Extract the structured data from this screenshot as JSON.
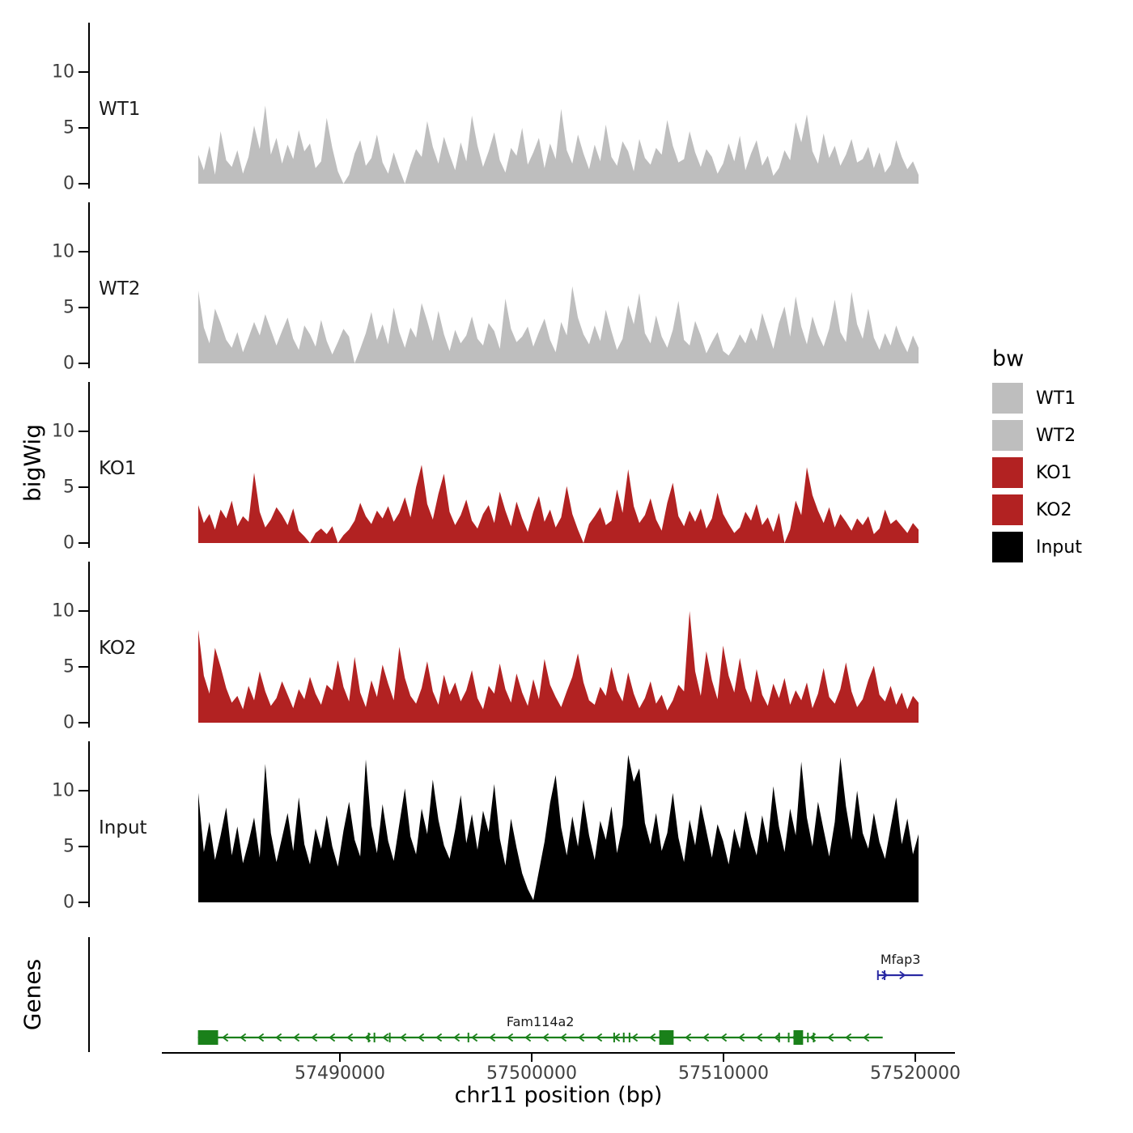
{
  "figure": {
    "y_axis_label": "bigWig",
    "genes_axis_label": "Genes",
    "x_axis_label": "chr11 position (bp)",
    "x_tick_labels": [
      "57490000",
      "57500000",
      "57510000",
      "57520000"
    ],
    "y_tick_labels": [
      "10",
      "5",
      "0"
    ]
  },
  "legend": {
    "title": "bw",
    "entries": [
      {
        "label": "WT1",
        "color": "#bebebe"
      },
      {
        "label": "WT2",
        "color": "#bebebe"
      },
      {
        "label": "KO1",
        "color": "#b22222"
      },
      {
        "label": "KO2",
        "color": "#b22222"
      },
      {
        "label": "Input",
        "color": "#000000"
      }
    ]
  },
  "chart_data": {
    "type": "area",
    "title": "",
    "xlabel": "chr11 position (bp)",
    "ylabel": "bigWig",
    "x_ticks_bp": [
      57490000,
      57500000,
      57510000,
      57520000
    ],
    "x_range_bp": [
      57482600,
      57520200
    ],
    "y_ticks": [
      0,
      5,
      10
    ],
    "tracks": [
      {
        "name": "WT1",
        "color": "#bebebe",
        "values": [
          2.6,
          1.2,
          3.4,
          0.8,
          4.7,
          2.1,
          1.5,
          3.0,
          0.9,
          2.4,
          5.2,
          3.1,
          7.0,
          2.6,
          4.1,
          1.8,
          3.5,
          2.2,
          4.8,
          2.9,
          3.6,
          1.4,
          2.0,
          5.9,
          3.2,
          1.1,
          0.0,
          0.8,
          2.7,
          3.9,
          1.6,
          2.3,
          4.4,
          1.9,
          0.9,
          2.8,
          1.3,
          0.0,
          1.7,
          3.1,
          2.4,
          5.6,
          3.3,
          1.8,
          4.2,
          2.6,
          1.2,
          3.7,
          2.0,
          6.1,
          3.4,
          1.5,
          2.9,
          4.6,
          2.1,
          1.0,
          3.2,
          2.5,
          5.0,
          1.7,
          2.8,
          4.1,
          1.4,
          3.6,
          2.2,
          6.7,
          3.0,
          1.8,
          4.4,
          2.7,
          1.3,
          3.5,
          2.0,
          5.3,
          2.4,
          1.6,
          3.8,
          2.9,
          1.1,
          4.0,
          2.3,
          1.7,
          3.2,
          2.6,
          5.7,
          3.4,
          1.9,
          2.2,
          4.7,
          2.8,
          1.5,
          3.1,
          2.4,
          0.9,
          1.8,
          3.6,
          2.0,
          4.3,
          1.2,
          2.7,
          3.9,
          1.6,
          2.5,
          0.7,
          1.4,
          3.0,
          2.1,
          5.5,
          3.7,
          6.2,
          2.9,
          1.8,
          4.5,
          2.3,
          3.4,
          1.6,
          2.6,
          4.0,
          1.9,
          2.2,
          3.3,
          1.4,
          2.8,
          1.0,
          1.7,
          3.9,
          2.4,
          1.3,
          2.0,
          0.8
        ]
      },
      {
        "name": "WT2",
        "color": "#bebebe",
        "values": [
          6.5,
          3.2,
          1.8,
          4.9,
          3.6,
          2.1,
          1.4,
          2.8,
          1.0,
          2.3,
          3.7,
          2.5,
          4.4,
          3.0,
          1.6,
          2.9,
          4.1,
          2.2,
          1.2,
          3.4,
          2.6,
          1.5,
          3.9,
          2.0,
          0.8,
          1.9,
          3.1,
          2.4,
          0.0,
          1.3,
          2.7,
          4.6,
          2.1,
          3.5,
          1.7,
          5.0,
          2.8,
          1.4,
          3.2,
          2.3,
          5.4,
          3.8,
          2.0,
          4.7,
          2.6,
          1.1,
          3.0,
          1.8,
          2.5,
          4.2,
          2.2,
          1.6,
          3.6,
          2.9,
          1.3,
          5.8,
          3.1,
          1.9,
          2.4,
          3.3,
          1.5,
          2.8,
          4.0,
          2.1,
          1.0,
          3.7,
          2.5,
          6.9,
          4.1,
          2.6,
          1.7,
          3.4,
          2.0,
          4.8,
          2.9,
          1.2,
          2.2,
          5.2,
          3.5,
          6.3,
          2.7,
          1.8,
          4.3,
          2.4,
          1.4,
          3.0,
          5.6,
          2.1,
          1.6,
          3.8,
          2.5,
          0.9,
          1.9,
          2.8,
          1.1,
          0.7,
          1.5,
          2.6,
          1.8,
          3.2,
          2.0,
          4.5,
          2.9,
          1.3,
          3.6,
          5.1,
          2.4,
          6.0,
          3.3,
          1.7,
          4.2,
          2.6,
          1.5,
          3.1,
          5.7,
          2.8,
          1.9,
          6.4,
          3.5,
          2.2,
          4.9,
          2.3,
          1.2,
          2.7,
          1.6,
          3.4,
          2.0,
          1.0,
          2.5,
          1.4
        ]
      },
      {
        "name": "KO1",
        "color": "#b22222",
        "values": [
          3.4,
          1.8,
          2.6,
          1.2,
          3.0,
          2.2,
          3.8,
          1.5,
          2.4,
          1.9,
          6.3,
          2.8,
          1.4,
          2.1,
          3.2,
          2.5,
          1.6,
          3.1,
          1.1,
          0.6,
          0.0,
          0.9,
          1.3,
          0.8,
          1.5,
          0.0,
          0.7,
          1.2,
          2.0,
          3.6,
          2.4,
          1.7,
          2.9,
          2.2,
          3.3,
          1.9,
          2.7,
          4.1,
          2.3,
          5.0,
          7.0,
          3.5,
          2.1,
          4.4,
          6.2,
          2.8,
          1.6,
          2.5,
          3.9,
          2.0,
          1.3,
          2.6,
          3.4,
          1.8,
          4.6,
          2.9,
          1.5,
          3.7,
          2.2,
          1.0,
          2.8,
          4.2,
          1.9,
          3.0,
          1.4,
          2.3,
          5.1,
          2.6,
          1.2,
          0.0,
          1.7,
          2.4,
          3.2,
          1.6,
          2.0,
          4.8,
          2.7,
          6.6,
          3.3,
          1.8,
          2.5,
          4.0,
          2.1,
          1.1,
          3.6,
          5.4,
          2.4,
          1.5,
          2.9,
          1.9,
          3.1,
          1.3,
          2.2,
          4.5,
          2.6,
          1.7,
          0.9,
          1.4,
          2.8,
          2.0,
          3.5,
          1.6,
          2.3,
          1.0,
          2.7,
          0.0,
          1.2,
          3.8,
          2.5,
          6.8,
          4.3,
          2.9,
          1.8,
          3.2,
          1.4,
          2.6,
          1.9,
          1.1,
          2.2,
          1.6,
          2.4,
          0.8,
          1.3,
          3.0,
          1.7,
          2.1,
          1.5,
          0.9,
          1.8,
          1.2
        ]
      },
      {
        "name": "KO2",
        "color": "#b22222",
        "values": [
          8.3,
          4.2,
          2.6,
          6.7,
          5.0,
          3.1,
          1.8,
          2.4,
          1.2,
          3.3,
          2.0,
          4.6,
          2.8,
          1.5,
          2.2,
          3.7,
          2.5,
          1.3,
          3.0,
          2.1,
          4.1,
          2.6,
          1.6,
          3.4,
          2.9,
          5.6,
          3.2,
          1.9,
          5.9,
          2.7,
          1.4,
          3.8,
          2.3,
          5.2,
          3.5,
          2.0,
          6.8,
          4.0,
          2.4,
          1.7,
          3.1,
          5.5,
          2.8,
          1.6,
          4.3,
          2.5,
          3.6,
          1.9,
          2.9,
          4.7,
          2.2,
          1.2,
          3.3,
          2.6,
          5.3,
          3.0,
          1.8,
          4.4,
          2.7,
          1.5,
          3.9,
          2.1,
          5.7,
          3.4,
          2.3,
          1.4,
          2.8,
          4.1,
          6.2,
          3.6,
          2.0,
          1.6,
          3.2,
          2.4,
          5.0,
          2.9,
          1.9,
          4.5,
          2.6,
          1.3,
          2.2,
          3.7,
          1.7,
          2.5,
          1.1,
          2.0,
          3.4,
          2.8,
          10.0,
          4.6,
          2.4,
          6.4,
          3.8,
          2.1,
          6.9,
          4.2,
          2.7,
          5.8,
          3.1,
          1.8,
          4.8,
          2.5,
          1.5,
          3.5,
          2.2,
          4.0,
          1.6,
          2.9,
          2.0,
          3.6,
          1.3,
          2.6,
          4.9,
          2.3,
          1.7,
          3.0,
          5.4,
          2.8,
          1.4,
          2.1,
          3.8,
          5.1,
          2.5,
          1.9,
          3.3,
          1.6,
          2.7,
          1.2,
          2.4,
          1.8
        ]
      },
      {
        "name": "Input",
        "color": "#000000",
        "values": [
          9.8,
          4.5,
          7.2,
          3.8,
          6.0,
          8.5,
          4.2,
          6.8,
          3.5,
          5.4,
          7.6,
          4.0,
          12.4,
          6.2,
          3.6,
          5.8,
          8.0,
          4.6,
          9.4,
          5.2,
          3.4,
          6.6,
          4.8,
          7.8,
          5.0,
          3.2,
          6.4,
          9.0,
          5.6,
          4.1,
          12.8,
          6.9,
          4.4,
          8.8,
          5.5,
          3.7,
          7.0,
          10.2,
          5.9,
          4.3,
          8.4,
          6.1,
          11.0,
          7.4,
          5.1,
          3.9,
          6.5,
          9.6,
          5.3,
          7.9,
          4.7,
          8.2,
          6.3,
          10.6,
          5.7,
          3.3,
          7.5,
          4.9,
          2.6,
          1.2,
          0.2,
          2.8,
          5.4,
          8.9,
          11.4,
          6.7,
          4.2,
          7.7,
          5.0,
          9.2,
          6.0,
          3.8,
          7.3,
          5.6,
          8.6,
          4.4,
          6.9,
          13.2,
          10.8,
          12.0,
          7.1,
          5.2,
          8.0,
          4.6,
          6.2,
          9.8,
          5.8,
          3.6,
          7.4,
          5.1,
          8.8,
          6.4,
          4.0,
          7.0,
          5.5,
          3.4,
          6.6,
          4.8,
          8.2,
          5.9,
          4.2,
          7.8,
          5.3,
          10.4,
          6.8,
          4.5,
          8.4,
          6.0,
          12.6,
          7.6,
          5.0,
          9.0,
          6.5,
          4.1,
          7.2,
          13.0,
          8.6,
          5.6,
          10.0,
          6.2,
          4.8,
          8.0,
          5.4,
          3.9,
          6.7,
          9.4,
          5.2,
          7.5,
          4.3,
          6.1
        ]
      }
    ],
    "genes": [
      {
        "name": "Fam114a2",
        "strand": "-",
        "color": "#1a801a",
        "start_bp": 57482600,
        "end_bp": 57518300,
        "exon_boxes_bp": [
          [
            57482600,
            57483650
          ],
          [
            57506650,
            57507400
          ],
          [
            57513650,
            57514150
          ]
        ],
        "exon_ticks_bp": [
          57491500,
          57491800,
          57492600,
          57496700,
          57504300,
          57504800,
          57505100,
          57512900,
          57513400,
          57514400,
          57514700
        ]
      },
      {
        "name": "Mfap3",
        "strand": "+",
        "color": "#2929a3",
        "start_bp": 57518050,
        "end_bp": 57520400,
        "exon_boxes_bp": [],
        "exon_ticks_bp": [
          57518050,
          57518400
        ]
      }
    ]
  }
}
